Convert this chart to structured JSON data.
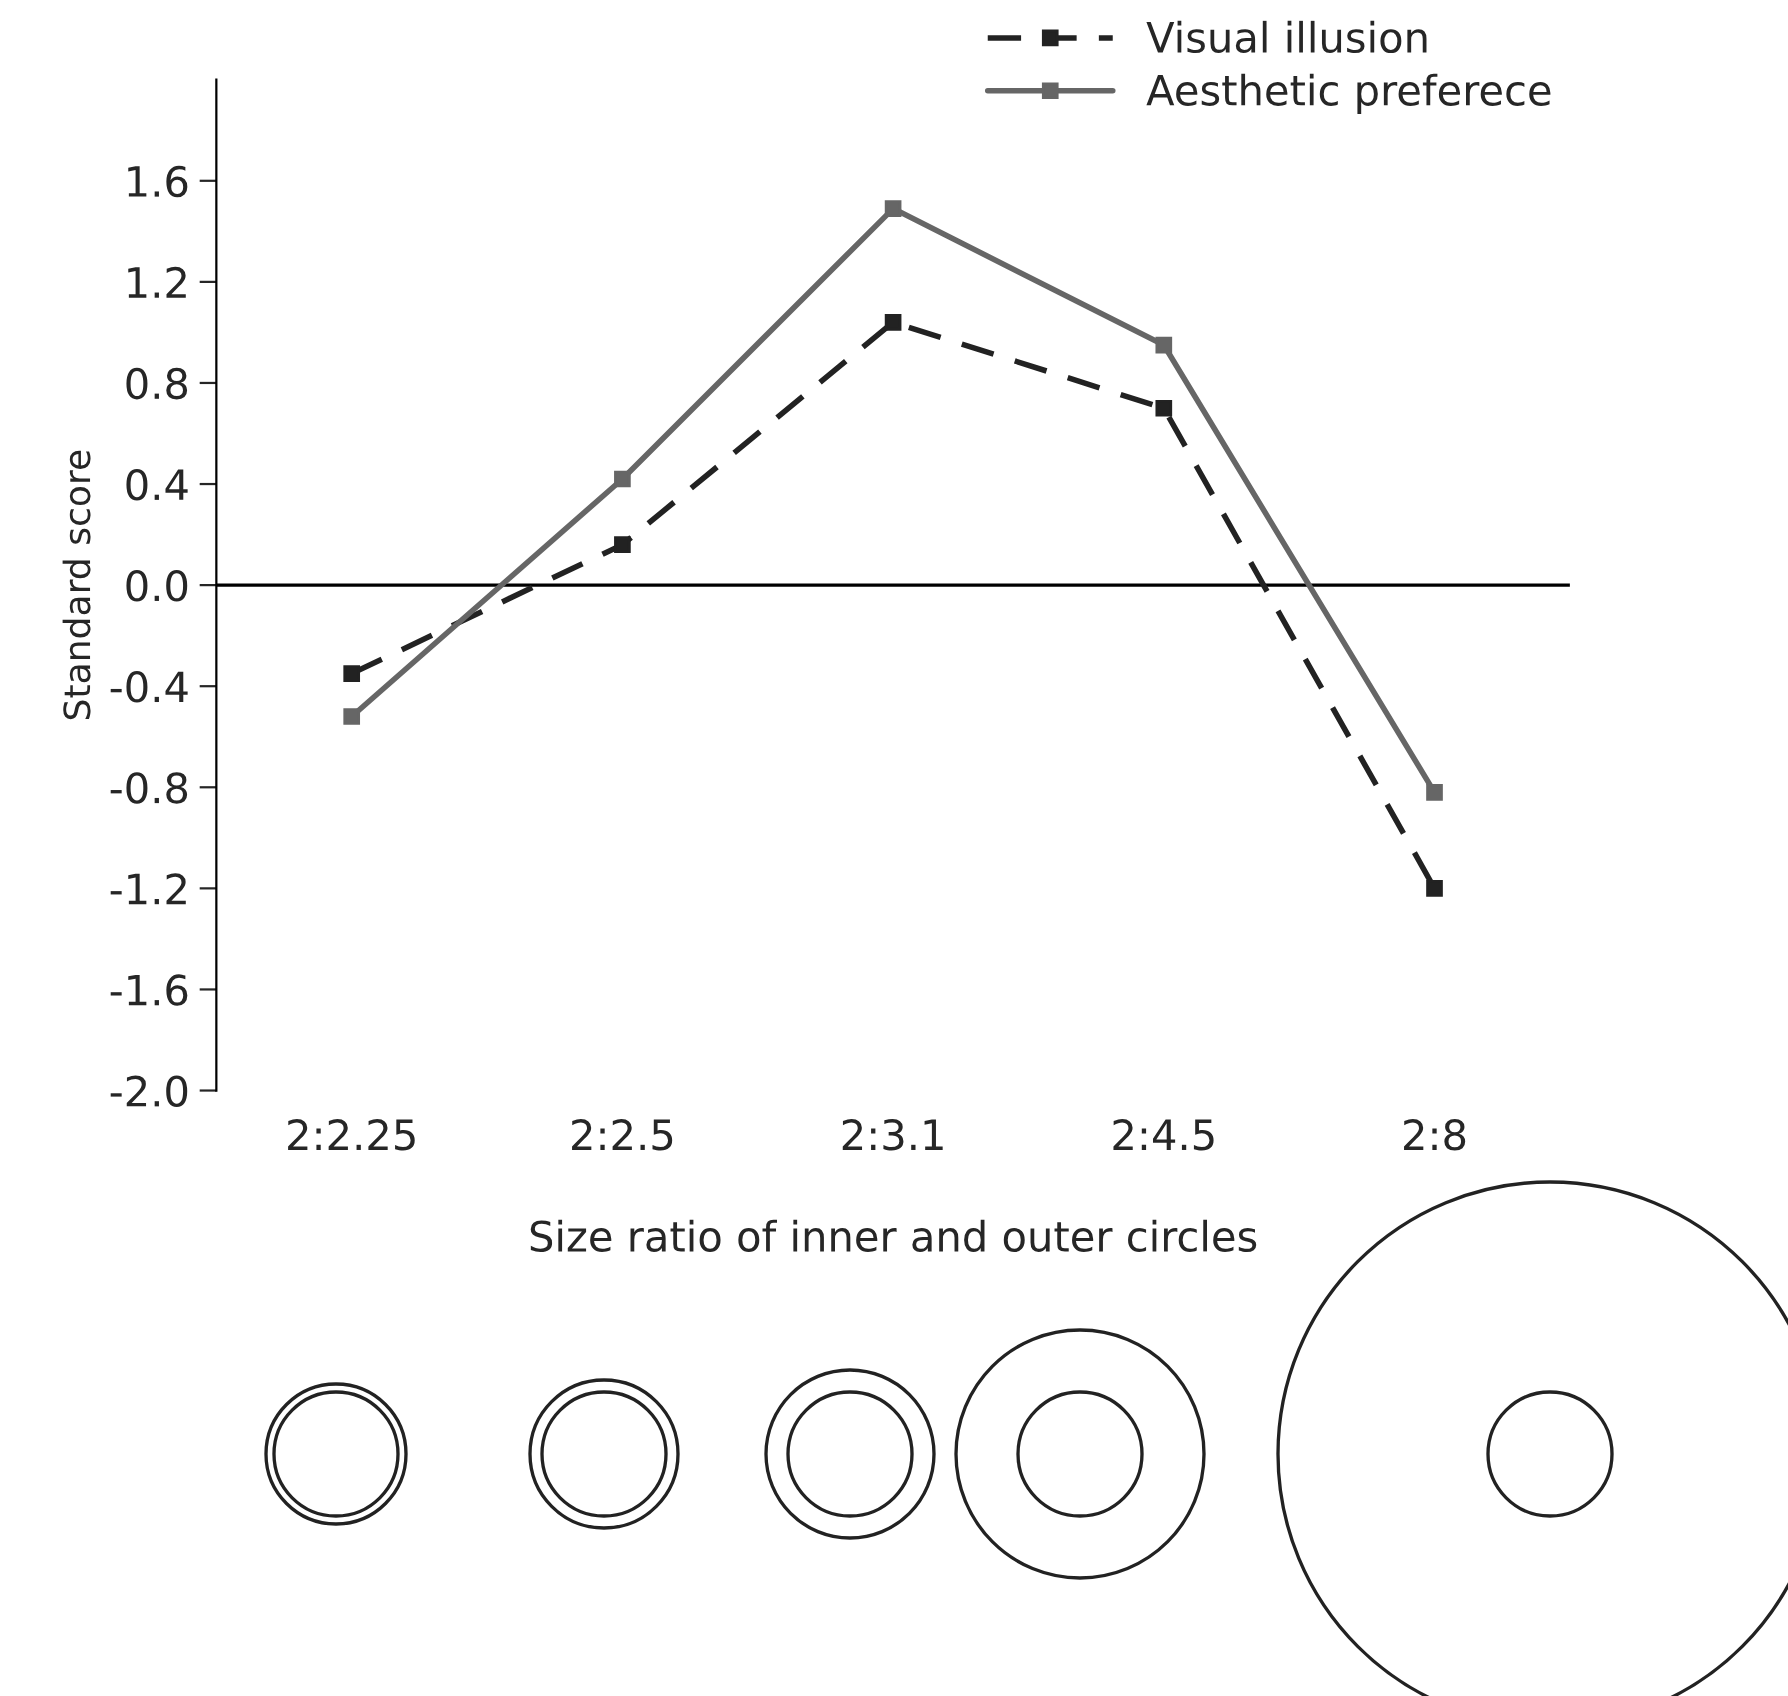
{
  "chart_data": {
    "type": "line",
    "xlabel": "Size ratio of inner and outer circles",
    "ylabel": "Standard score",
    "categories": [
      "2:2.25",
      "2:2.5",
      "2:3.1",
      "2:4.5",
      "2:8"
    ],
    "series": [
      {
        "name": "Visual illusion",
        "color": "#222222",
        "line_style": "dashed",
        "values": [
          -0.35,
          0.16,
          1.04,
          0.7,
          -1.2
        ]
      },
      {
        "name": "Aesthetic preferece",
        "color": "#666666",
        "line_style": "solid",
        "values": [
          -0.52,
          0.42,
          1.49,
          0.95,
          -0.82
        ]
      }
    ],
    "ylim": [
      -2.0,
      2.0
    ],
    "yticks": [
      {
        "value": -2,
        "label": "-2.0"
      },
      -1.6,
      -1.2,
      -0.8,
      -0.4,
      {
        "value": 0,
        "label": "0.0"
      },
      0.4,
      0.8,
      1.2,
      1.6
    ],
    "ref_lines": [
      {
        "axis": "y",
        "value": 0.0,
        "color": "#000000"
      }
    ],
    "marker": "square",
    "grid": false,
    "legend": "top right"
  }
}
